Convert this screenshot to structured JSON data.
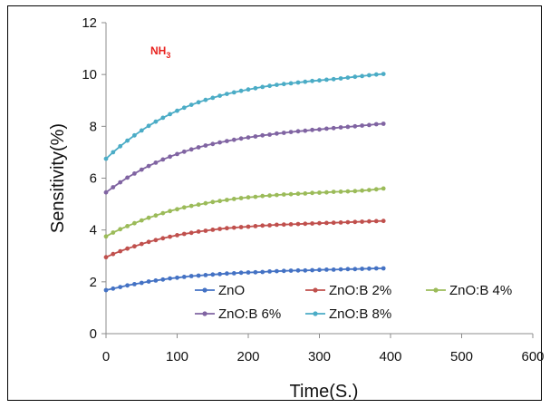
{
  "chart_data": {
    "type": "line",
    "xlabel": "Time(S.)",
    "ylabel": "Sensitivity(%)",
    "annotation": {
      "main": "NH",
      "sub": "3"
    },
    "xlim": [
      0,
      600
    ],
    "ylim": [
      0,
      12
    ],
    "xticks": [
      0,
      100,
      200,
      300,
      400,
      500,
      600
    ],
    "yticks": [
      0,
      2,
      4,
      6,
      8,
      10,
      12
    ],
    "grid": false,
    "legend_position": "bottom-right",
    "x": [
      0,
      10,
      20,
      30,
      40,
      50,
      60,
      70,
      80,
      90,
      100,
      110,
      120,
      130,
      140,
      150,
      160,
      170,
      180,
      190,
      200,
      210,
      220,
      230,
      240,
      250,
      260,
      270,
      280,
      290,
      300,
      310,
      320,
      330,
      340,
      350,
      360,
      370,
      380,
      390
    ],
    "series": [
      {
        "name": "ZnO",
        "color": "#4472c4",
        "values": [
          1.68,
          1.74,
          1.8,
          1.86,
          1.91,
          1.96,
          2.01,
          2.05,
          2.09,
          2.13,
          2.16,
          2.19,
          2.22,
          2.24,
          2.26,
          2.28,
          2.3,
          2.32,
          2.33,
          2.35,
          2.36,
          2.37,
          2.38,
          2.4,
          2.41,
          2.42,
          2.43,
          2.44,
          2.44,
          2.45,
          2.46,
          2.47,
          2.47,
          2.48,
          2.49,
          2.49,
          2.5,
          2.51,
          2.52,
          2.52
        ]
      },
      {
        "name": "ZnO:B 2%",
        "color": "#c0504d",
        "values": [
          2.95,
          3.07,
          3.18,
          3.28,
          3.37,
          3.46,
          3.54,
          3.61,
          3.68,
          3.74,
          3.8,
          3.85,
          3.89,
          3.94,
          3.97,
          4.01,
          4.04,
          4.07,
          4.09,
          4.11,
          4.13,
          4.15,
          4.17,
          4.18,
          4.2,
          4.21,
          4.22,
          4.23,
          4.24,
          4.25,
          4.26,
          4.27,
          4.28,
          4.29,
          4.3,
          4.31,
          4.32,
          4.33,
          4.34,
          4.35
        ]
      },
      {
        "name": "ZnO:B 4%",
        "color": "#9bbb59",
        "values": [
          3.75,
          3.9,
          4.03,
          4.15,
          4.26,
          4.37,
          4.47,
          4.56,
          4.65,
          4.73,
          4.8,
          4.87,
          4.93,
          4.98,
          5.03,
          5.08,
          5.12,
          5.16,
          5.2,
          5.23,
          5.26,
          5.28,
          5.31,
          5.33,
          5.35,
          5.37,
          5.38,
          5.4,
          5.41,
          5.43,
          5.44,
          5.45,
          5.47,
          5.48,
          5.49,
          5.5,
          5.52,
          5.54,
          5.57,
          5.6
        ]
      },
      {
        "name": "ZnO:B 6%",
        "color": "#8064a2",
        "values": [
          5.45,
          5.65,
          5.84,
          6.02,
          6.18,
          6.33,
          6.47,
          6.6,
          6.72,
          6.83,
          6.93,
          7.02,
          7.11,
          7.19,
          7.26,
          7.32,
          7.38,
          7.43,
          7.48,
          7.53,
          7.57,
          7.61,
          7.65,
          7.68,
          7.72,
          7.75,
          7.78,
          7.81,
          7.83,
          7.86,
          7.88,
          7.91,
          7.93,
          7.96,
          7.98,
          8.0,
          8.03,
          8.05,
          8.08,
          8.1
        ]
      },
      {
        "name": "ZnO:B 8%",
        "color": "#4bacc6",
        "values": [
          6.75,
          7.0,
          7.23,
          7.45,
          7.65,
          7.84,
          8.02,
          8.18,
          8.33,
          8.47,
          8.6,
          8.72,
          8.83,
          8.93,
          9.02,
          9.1,
          9.18,
          9.25,
          9.31,
          9.37,
          9.42,
          9.47,
          9.52,
          9.56,
          9.6,
          9.63,
          9.66,
          9.69,
          9.72,
          9.75,
          9.77,
          9.8,
          9.82,
          9.85,
          9.88,
          9.91,
          9.94,
          9.97,
          10.0,
          10.02
        ]
      }
    ]
  }
}
